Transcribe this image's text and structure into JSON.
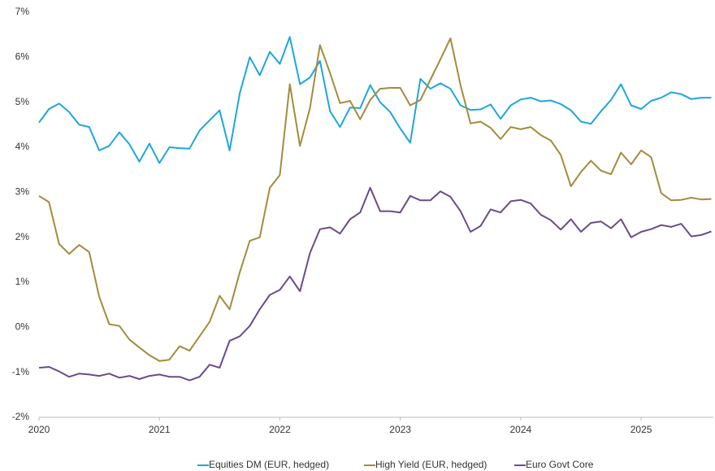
{
  "chart_data": {
    "type": "line",
    "x": [
      2020,
      2020.083,
      2020.167,
      2020.25,
      2020.333,
      2020.417,
      2020.5,
      2020.583,
      2020.667,
      2020.75,
      2020.833,
      2020.917,
      2021,
      2021.083,
      2021.167,
      2021.25,
      2021.333,
      2021.417,
      2021.5,
      2021.583,
      2021.667,
      2021.75,
      2021.833,
      2021.917,
      2022,
      2022.083,
      2022.167,
      2022.25,
      2022.333,
      2022.417,
      2022.5,
      2022.583,
      2022.667,
      2022.75,
      2022.833,
      2022.917,
      2023,
      2023.083,
      2023.167,
      2023.25,
      2023.333,
      2023.417,
      2023.5,
      2023.583,
      2023.667,
      2023.75,
      2023.833,
      2023.917,
      2024,
      2024.083,
      2024.167,
      2024.25,
      2024.333,
      2024.417,
      2024.5,
      2024.583,
      2024.667,
      2024.75,
      2024.833,
      2024.917,
      2025,
      2025.083,
      2025.167,
      2025.25,
      2025.333,
      2025.417,
      2025.5,
      2025.583
    ],
    "series": [
      {
        "name": "Equities DM (EUR, hedged)",
        "color": "#1ea6dc",
        "values": [
          4.55,
          4.85,
          4.97,
          4.78,
          4.5,
          4.45,
          3.93,
          4.03,
          4.33,
          4.07,
          3.68,
          4.08,
          3.65,
          4.0,
          3.98,
          3.97,
          4.37,
          4.6,
          4.82,
          3.93,
          5.2,
          6.0,
          5.6,
          6.12,
          5.85,
          6.45,
          5.4,
          5.55,
          5.92,
          4.8,
          4.45,
          4.88,
          4.87,
          5.38,
          5.0,
          4.78,
          4.42,
          4.1,
          5.52,
          5.3,
          5.42,
          5.3,
          4.93,
          4.83,
          4.84,
          4.95,
          4.63,
          4.93,
          5.06,
          5.1,
          5.02,
          5.04,
          4.96,
          4.82,
          4.57,
          4.52,
          4.8,
          5.05,
          5.4,
          4.93,
          4.85,
          5.03,
          5.1,
          5.22,
          5.18,
          5.07,
          5.1,
          5.1
        ]
      },
      {
        "name": "High Yield (EUR, hedged)",
        "color": "#a28c3c",
        "values": [
          2.92,
          2.78,
          1.85,
          1.63,
          1.83,
          1.67,
          0.68,
          0.07,
          0.03,
          -0.27,
          -0.45,
          -0.62,
          -0.75,
          -0.72,
          -0.42,
          -0.52,
          -0.2,
          0.12,
          0.7,
          0.4,
          1.22,
          1.92,
          2.0,
          3.1,
          3.38,
          5.4,
          4.03,
          4.87,
          6.27,
          5.65,
          4.98,
          5.03,
          4.62,
          5.05,
          5.3,
          5.32,
          5.32,
          4.93,
          5.05,
          5.5,
          5.95,
          6.42,
          5.38,
          4.53,
          4.57,
          4.43,
          4.18,
          4.45,
          4.4,
          4.45,
          4.27,
          4.15,
          3.83,
          3.13,
          3.45,
          3.7,
          3.48,
          3.4,
          3.88,
          3.62,
          3.93,
          3.78,
          2.98,
          2.82,
          2.83,
          2.88,
          2.84,
          2.85
        ]
      },
      {
        "name": "Euro Govt Core",
        "color": "#6a4b8d",
        "values": [
          -0.9,
          -0.88,
          -0.98,
          -1.1,
          -1.03,
          -1.05,
          -1.08,
          -1.03,
          -1.12,
          -1.08,
          -1.15,
          -1.08,
          -1.05,
          -1.1,
          -1.1,
          -1.18,
          -1.1,
          -0.83,
          -0.9,
          -0.3,
          -0.2,
          0.03,
          0.4,
          0.72,
          0.83,
          1.13,
          0.8,
          1.65,
          2.18,
          2.22,
          2.08,
          2.4,
          2.55,
          3.1,
          2.58,
          2.58,
          2.55,
          2.92,
          2.82,
          2.82,
          3.02,
          2.9,
          2.58,
          2.12,
          2.25,
          2.62,
          2.55,
          2.8,
          2.83,
          2.75,
          2.5,
          2.38,
          2.17,
          2.4,
          2.12,
          2.32,
          2.35,
          2.2,
          2.4,
          2.0,
          2.12,
          2.18,
          2.27,
          2.23,
          2.3,
          2.02,
          2.05,
          2.13
        ]
      }
    ],
    "xlim": [
      2020,
      2025.6
    ],
    "xticks": [
      2020,
      2021,
      2022,
      2023,
      2024,
      2025
    ],
    "ylim": [
      -2,
      7
    ],
    "yticks": [
      {
        "value": -2,
        "label": "-2%"
      },
      {
        "value": -1,
        "label": "-1%"
      },
      {
        "value": 0,
        "label": "0%"
      },
      {
        "value": 1,
        "label": "1%"
      },
      {
        "value": 2,
        "label": "2%"
      },
      {
        "value": 3,
        "label": "3%"
      },
      {
        "value": 4,
        "label": "4%"
      },
      {
        "value": 5,
        "label": "5%"
      },
      {
        "value": 6,
        "label": "6%"
      },
      {
        "value": 7,
        "label": "7%"
      }
    ],
    "grid": false,
    "legend": "bottom"
  }
}
